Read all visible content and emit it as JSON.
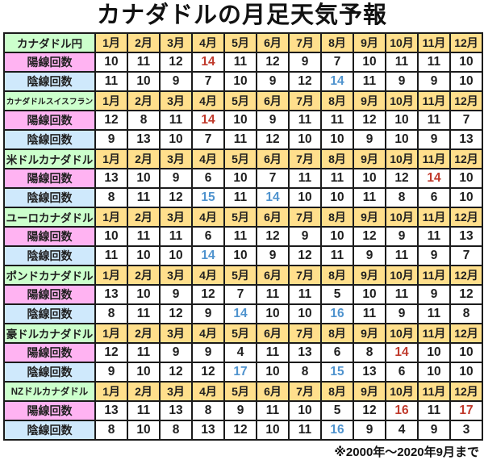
{
  "title": "カナダドルの月足天気予報",
  "footnote": "※2000年～2020年9月まで",
  "colors": {
    "pair_header_bg": "#ccffcc",
    "month_header_bg": "#ffdf8c",
    "bull_row_bg": "#ffb3f2",
    "bear_row_bg": "#cfe9fc",
    "max_bull_text": "#c0392b",
    "max_bear_text": "#4f93ce",
    "grid_border": "#1b1b1b"
  },
  "chart_data": {
    "type": "table",
    "title": "カナダドルの月足天気予報",
    "note": "※2000年～2020年9月まで",
    "months": [
      "1月",
      "2月",
      "3月",
      "4月",
      "5月",
      "6月",
      "7月",
      "8月",
      "9月",
      "10月",
      "11月",
      "12月"
    ],
    "bull_label": "陽線回数",
    "bear_label": "陰線回数",
    "sections": [
      {
        "pair": "カナダドル円",
        "bull": [
          10,
          11,
          12,
          14,
          11,
          12,
          9,
          7,
          10,
          11,
          11,
          10
        ],
        "bear": [
          11,
          10,
          9,
          7,
          10,
          9,
          12,
          14,
          11,
          9,
          9,
          10
        ],
        "bull_red": [
          3
        ],
        "bear_blue": [
          7
        ]
      },
      {
        "pair": "カナダドルスイスフラン",
        "bull": [
          12,
          8,
          11,
          14,
          10,
          9,
          11,
          11,
          12,
          10,
          11,
          7
        ],
        "bear": [
          9,
          13,
          10,
          7,
          11,
          12,
          10,
          10,
          9,
          10,
          9,
          13
        ],
        "bull_red": [
          3
        ],
        "bear_blue": []
      },
      {
        "pair": "米ドルカナダドル",
        "bull": [
          13,
          10,
          9,
          6,
          10,
          7,
          11,
          11,
          10,
          12,
          14,
          10
        ],
        "bear": [
          8,
          11,
          12,
          15,
          11,
          14,
          10,
          10,
          11,
          8,
          6,
          10
        ],
        "bull_red": [
          10
        ],
        "bear_blue": [
          3,
          5
        ]
      },
      {
        "pair": "ユーロカナダドル",
        "bull": [
          10,
          11,
          11,
          6,
          11,
          12,
          9,
          10,
          12,
          9,
          11,
          13
        ],
        "bear": [
          11,
          10,
          10,
          14,
          10,
          9,
          12,
          11,
          9,
          11,
          9,
          7
        ],
        "bull_red": [],
        "bear_blue": [
          3
        ]
      },
      {
        "pair": "ポンドカナダドル",
        "bull": [
          13,
          10,
          9,
          12,
          7,
          11,
          11,
          5,
          10,
          11,
          9,
          12
        ],
        "bear": [
          8,
          11,
          12,
          9,
          14,
          10,
          10,
          16,
          11,
          9,
          11,
          8
        ],
        "bull_red": [],
        "bear_blue": [
          4,
          7
        ]
      },
      {
        "pair": "豪ドルカナダドル",
        "bull": [
          12,
          11,
          9,
          9,
          4,
          11,
          13,
          6,
          8,
          14,
          10,
          10
        ],
        "bear": [
          9,
          10,
          12,
          12,
          17,
          10,
          8,
          15,
          13,
          6,
          10,
          10
        ],
        "bull_red": [
          9
        ],
        "bear_blue": [
          4,
          7
        ]
      },
      {
        "pair": "NZドルカナダドル",
        "bull": [
          13,
          11,
          13,
          8,
          9,
          11,
          10,
          5,
          12,
          16,
          11,
          17
        ],
        "bear": [
          8,
          10,
          8,
          13,
          12,
          10,
          11,
          16,
          9,
          4,
          9,
          3
        ],
        "bull_red": [
          9,
          11
        ],
        "bear_blue": [
          7
        ]
      }
    ]
  }
}
